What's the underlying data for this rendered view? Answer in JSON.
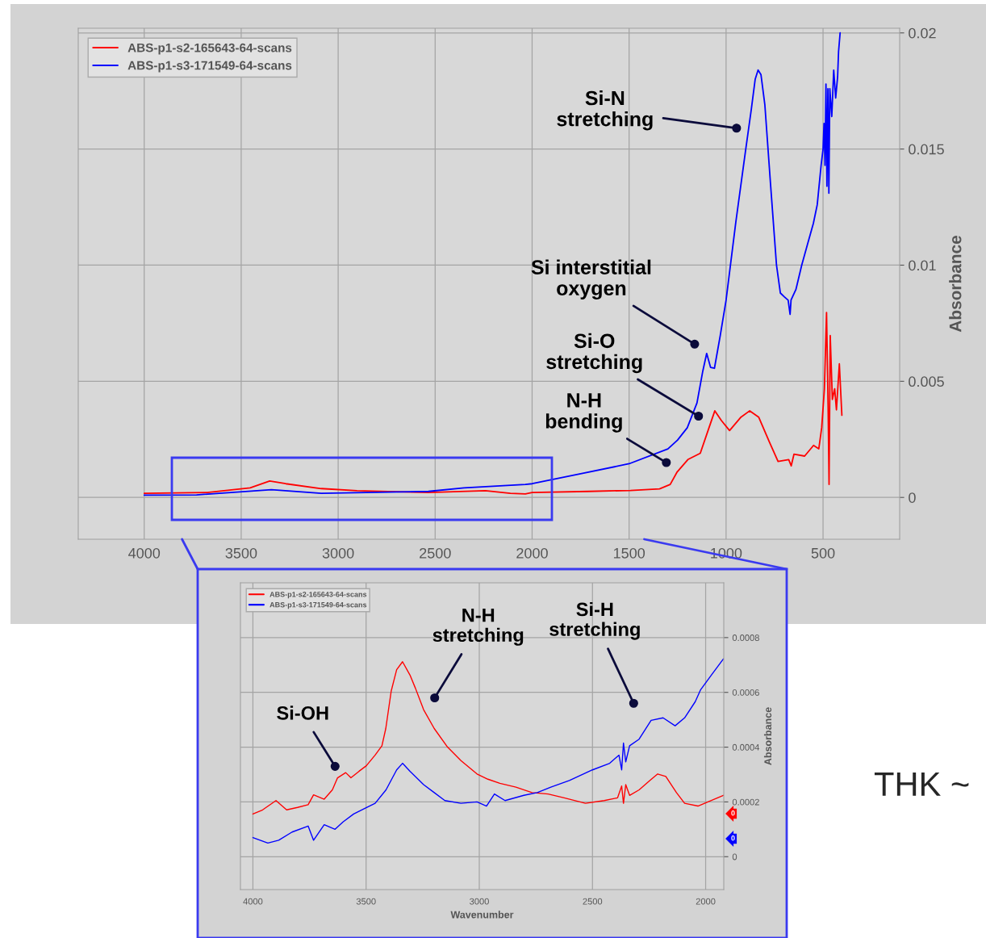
{
  "chart_data": [
    {
      "type": "line",
      "ylabel": "Absorbance",
      "xlim": [
        4340,
        105
      ],
      "ylim": [
        -0.0018,
        0.0202
      ],
      "xticks": [
        4000,
        3500,
        3000,
        2500,
        2000,
        1500,
        1000,
        500
      ],
      "yticks": [
        0,
        0.005,
        0.01,
        0.015,
        0.02
      ],
      "grid": true,
      "legend": "top left",
      "series": [
        {
          "name": "ABS-p1-s2-165643-64-scans",
          "color": "#ff0000",
          "x": [
            4000,
            3675,
            3454,
            3353,
            3270,
            3087,
            2903,
            2535,
            2241,
            2112,
            2035,
            2000,
            1708,
            1493,
            1343,
            1288,
            1252,
            1197,
            1133,
            1088,
            1058,
            1024,
            982,
            923,
            878,
            832,
            777,
            732,
            677,
            664,
            650,
            595,
            549,
            522,
            507,
            493,
            482,
            474,
            469,
            463,
            452,
            440,
            431,
            416,
            403
          ],
          "values": [
            0.00018,
            0.00021,
            0.00041,
            0.00071,
            0.00059,
            0.00038,
            0.00029,
            0.00021,
            0.00029,
            0.00018,
            0.00015,
            0.00021,
            0.00026,
            0.0003,
            0.00037,
            0.00056,
            0.0011,
            0.00163,
            0.0019,
            0.003,
            0.00373,
            0.00331,
            0.00288,
            0.00346,
            0.00373,
            0.00346,
            0.00239,
            0.00155,
            0.00163,
            0.00136,
            0.00186,
            0.00178,
            0.00224,
            0.00209,
            0.003,
            0.00468,
            0.00796,
            0.00392,
            0.00056,
            0.00697,
            0.00422,
            0.00468,
            0.00377,
            0.00575,
            0.00354
          ]
        },
        {
          "name": "ABS-p1-s3-171549-64-scans",
          "color": "#0000ff",
          "x": [
            4000,
            3730,
            3344,
            3087,
            2535,
            2351,
            2035,
            2000,
            1750,
            1500,
            1300,
            1250,
            1200,
            1150,
            1120,
            1100,
            1080,
            1060,
            1030,
            1000,
            950,
            900,
            870,
            850,
            835,
            820,
            800,
            770,
            740,
            720,
            700,
            680,
            670,
            665,
            640,
            610,
            580,
            550,
            530,
            510,
            500,
            495,
            490,
            485,
            480,
            475,
            470,
            465,
            455,
            445,
            435,
            425,
            420,
            412
          ],
          "values": [
            0.0001,
            0.00011,
            0.00033,
            0.00018,
            0.00026,
            0.00041,
            0.00056,
            0.00059,
            0.00102,
            0.00145,
            0.00209,
            0.00247,
            0.003,
            0.00407,
            0.00544,
            0.0062,
            0.0056,
            0.00556,
            0.00697,
            0.00849,
            0.01184,
            0.0149,
            0.0167,
            0.018,
            0.0184,
            0.0182,
            0.0169,
            0.0134,
            0.01,
            0.0088,
            0.00864,
            0.00849,
            0.00788,
            0.0085,
            0.00895,
            0.01,
            0.0109,
            0.0118,
            0.0126,
            0.0143,
            0.015,
            0.0161,
            0.0143,
            0.0178,
            0.0134,
            0.0176,
            0.0131,
            0.0176,
            0.0164,
            0.0184,
            0.0172,
            0.0181,
            0.0192,
            0.02
          ]
        }
      ],
      "annotations": [
        {
          "text": "Si-N\nstretching",
          "x": 946,
          "y": 0.0159
        },
        {
          "text": "Si interstitial\noxygen",
          "x": 1162,
          "y": 0.0066
        },
        {
          "text": "Si-O\nstretching",
          "x": 1142,
          "y": 0.0035
        },
        {
          "text": "N-H\nbending",
          "x": 1308,
          "y": 0.0015
        },
        "THK ~"
      ]
    },
    {
      "type": "line",
      "xlabel": "Wavenumber",
      "ylabel": "Absorbance",
      "xlim": [
        4055,
        1920
      ],
      "ylim": [
        -0.00012,
        0.001
      ],
      "xticks": [
        4000,
        3500,
        3000,
        2500,
        2000
      ],
      "yticks": [
        0,
        0.0002,
        0.0004,
        0.0006,
        0.0008
      ],
      "grid": true,
      "legend": "top left",
      "series": [
        {
          "name": "ABS-p1-s2-165643-64-scans",
          "color": "#ff0000",
          "x": [
            4000,
            3957,
            3898,
            3851,
            3803,
            3756,
            3732,
            3685,
            3649,
            3626,
            3590,
            3567,
            3531,
            3499,
            3460,
            3430,
            3413,
            3389,
            3365,
            3339,
            3306,
            3282,
            3246,
            3199,
            3140,
            3081,
            3010,
            2962,
            2909,
            2838,
            2767,
            2696,
            2625,
            2531,
            2448,
            2389,
            2371,
            2363,
            2353,
            2336,
            2294,
            2247,
            2212,
            2176,
            2129,
            2093,
            2034,
            1975,
            1922
          ],
          "values": [
            0.000156,
            0.000171,
            0.000205,
            0.000171,
            0.00018,
            0.00019,
            0.000226,
            0.00021,
            0.000244,
            0.000288,
            0.000307,
            0.000288,
            0.000312,
            0.000332,
            0.000371,
            0.000405,
            0.000468,
            0.000605,
            0.000683,
            0.000712,
            0.000663,
            0.000615,
            0.000537,
            0.000468,
            0.0004,
            0.000351,
            0.000302,
            0.000283,
            0.000268,
            0.000254,
            0.000234,
            0.000229,
            0.000215,
            0.000195,
            0.000205,
            0.000215,
            0.000258,
            0.000195,
            0.000263,
            0.000224,
            0.000244,
            0.000278,
            0.000302,
            0.000293,
            0.000234,
            0.000195,
            0.000185,
            0.000205,
            0.000224
          ]
        },
        {
          "name": "ABS-p1-s3-171549-64-scans",
          "color": "#0000ff",
          "x": [
            4000,
            3934,
            3886,
            3827,
            3756,
            3732,
            3685,
            3637,
            3602,
            3555,
            3507,
            3460,
            3412,
            3365,
            3339,
            3306,
            3246,
            3199,
            3152,
            3081,
            3010,
            2968,
            2933,
            2886,
            2803,
            2744,
            2684,
            2602,
            2500,
            2424,
            2383,
            2371,
            2363,
            2353,
            2336,
            2294,
            2241,
            2188,
            2135,
            2093,
            2046,
            2022,
            1975,
            1922
          ],
          "values": [
            7e-05,
            5e-05,
            6e-05,
            9e-05,
            0.000112,
            6e-05,
            0.000117,
            0.0001,
            0.000127,
            0.000156,
            0.000176,
            0.000195,
            0.000244,
            0.000317,
            0.000341,
            0.000312,
            0.000263,
            0.000234,
            0.000205,
            0.000195,
            0.0002,
            0.000185,
            0.000229,
            0.000205,
            0.000224,
            0.000234,
            0.000254,
            0.000278,
            0.000317,
            0.000341,
            0.000371,
            0.000317,
            0.000415,
            0.000346,
            0.000405,
            0.000429,
            0.000498,
            0.000507,
            0.000478,
            0.000507,
            0.000566,
            0.00061,
            0.000663,
            0.000722
          ]
        }
      ],
      "annotations": [
        {
          "text": "Si-OH",
          "x": 3637,
          "y": 0.00033
        },
        {
          "text": "N-H\nstretching",
          "x": 3197,
          "y": 0.00058
        },
        {
          "text": "Si-H\nstretching",
          "x": 2318,
          "y": 0.00056
        },
        "0",
        "0"
      ]
    }
  ]
}
